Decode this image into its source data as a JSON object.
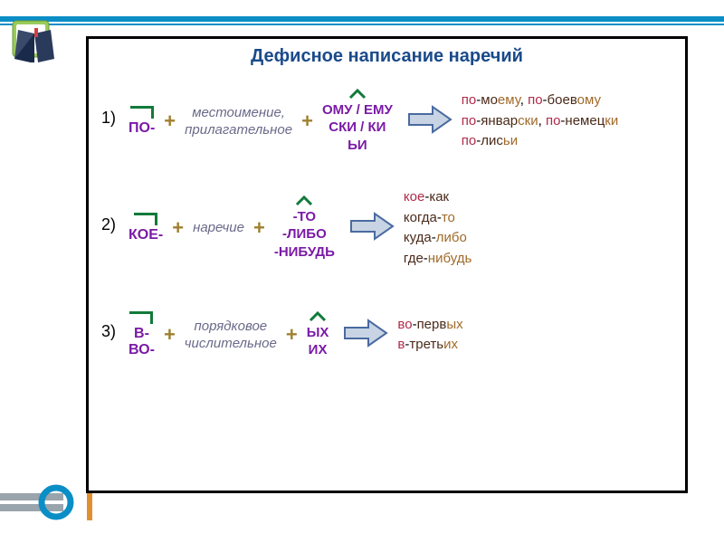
{
  "title": "Дефисное написание наречий",
  "colors": {
    "frame_border": "#000000",
    "title_color": "#1a4a8a",
    "prefix_color": "#7a1aa6",
    "suffix_color": "#7a1aa6",
    "base_color": "#6a6a8a",
    "plus_color": "#a08030",
    "mark_color": "#127a3a",
    "arrow_fill": "#c8d4e4",
    "arrow_stroke": "#4a6aa0",
    "ex_prefix_color": "#b02a4a",
    "ex_root_color": "#4a2a1a",
    "ex_suffix_color": "#a06a2a",
    "top_bar": "#0b8ec6"
  },
  "rules": [
    {
      "num": "1)",
      "prefix": "ПО-",
      "base_lines": [
        "местоимение,",
        "прилагательное"
      ],
      "suffix_lines": [
        "ОМУ / ЕМУ",
        "СКИ / КИ",
        "ЬИ"
      ],
      "examples": [
        [
          {
            "t": "по",
            "c": "p"
          },
          {
            "t": "-",
            "c": "d"
          },
          {
            "t": "мо",
            "c": "r"
          },
          {
            "t": "ему",
            "c": "s"
          },
          {
            "t": ", ",
            "c": "d"
          },
          {
            "t": "по",
            "c": "p"
          },
          {
            "t": "-",
            "c": "d"
          },
          {
            "t": "боев",
            "c": "r"
          },
          {
            "t": "ому",
            "c": "s"
          }
        ],
        [
          {
            "t": "по",
            "c": "p"
          },
          {
            "t": "-",
            "c": "d"
          },
          {
            "t": "январ",
            "c": "r"
          },
          {
            "t": "ски",
            "c": "s"
          },
          {
            "t": ", ",
            "c": "d"
          },
          {
            "t": "по",
            "c": "p"
          },
          {
            "t": "-",
            "c": "d"
          },
          {
            "t": "немец",
            "c": "r"
          },
          {
            "t": "ки",
            "c": "s"
          }
        ],
        [
          {
            "t": "по",
            "c": "p"
          },
          {
            "t": "-",
            "c": "d"
          },
          {
            "t": "лис",
            "c": "r"
          },
          {
            "t": "ьи",
            "c": "s"
          }
        ]
      ]
    },
    {
      "num": "2)",
      "prefix": "КОЕ-",
      "base_lines": [
        "наречие"
      ],
      "suffix_lines": [
        "-ТО",
        "-ЛИБО",
        "-НИБУДЬ"
      ],
      "examples": [
        [
          {
            "t": "кое",
            "c": "p"
          },
          {
            "t": "-",
            "c": "d"
          },
          {
            "t": "как",
            "c": "r"
          }
        ],
        [
          {
            "t": "когда",
            "c": "r"
          },
          {
            "t": "-",
            "c": "d"
          },
          {
            "t": "то",
            "c": "s"
          }
        ],
        [
          {
            "t": "куда",
            "c": "r"
          },
          {
            "t": "-",
            "c": "d"
          },
          {
            "t": "либо",
            "c": "s"
          }
        ],
        [
          {
            "t": "где",
            "c": "r"
          },
          {
            "t": "-",
            "c": "d"
          },
          {
            "t": "нибудь",
            "c": "s"
          }
        ]
      ]
    },
    {
      "num": "3)",
      "prefix_lines": [
        "В-",
        "ВО-"
      ],
      "base_lines": [
        "порядковое",
        "числительное"
      ],
      "suffix_lines": [
        "ЫХ",
        "ИХ"
      ],
      "examples": [
        [
          {
            "t": "во",
            "c": "p"
          },
          {
            "t": "-",
            "c": "d"
          },
          {
            "t": "перв",
            "c": "r"
          },
          {
            "t": "ых",
            "c": "s"
          }
        ],
        [
          {
            "t": "в",
            "c": "p"
          },
          {
            "t": "-",
            "c": "d"
          },
          {
            "t": "треть",
            "c": "r"
          },
          {
            "t": "их",
            "c": "s"
          }
        ]
      ]
    }
  ]
}
